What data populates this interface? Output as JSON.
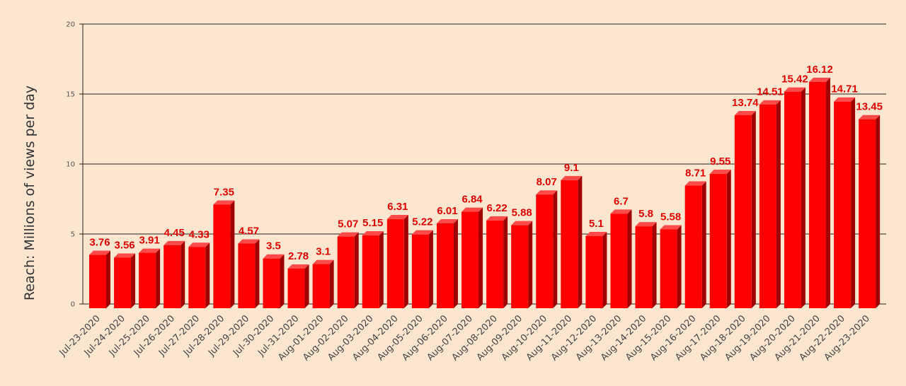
{
  "chart_data": {
    "type": "bar",
    "title": "",
    "xlabel": "",
    "ylabel": "Reach: Millions of views per day",
    "ylim": [
      0,
      20
    ],
    "yticks": [
      0,
      5,
      10,
      15,
      20
    ],
    "grid": true,
    "legend": "none",
    "colors": {
      "bar": "#ff0000",
      "bar_side": "#a00000",
      "bar_top": "#ff4a4a",
      "label": "#e00000",
      "background": "#fde6d0"
    },
    "categories": [
      "Jul-23-2020",
      "Jul-24-2020",
      "Jul-25-2020",
      "Jul-26-2020",
      "Jul-27-2020",
      "Jul-28-2020",
      "Jul-29-2020",
      "Jul-30-2020",
      "Jul-31-2020",
      "Aug-01-2020",
      "Aug-02-2020",
      "Aug-03-2020",
      "Aug-04-2020",
      "Aug-05-2020",
      "Aug-06-2020",
      "Aug-07-2020",
      "Aug-08-2020",
      "Aug-09-2020",
      "Aug-10-2020",
      "Aug-11-2020",
      "Aug-12-2020",
      "Aug-13-2020",
      "Aug-14-2020",
      "Aug-15-2020",
      "Aug-16-2020",
      "Aug-17-2020",
      "Aug-18-2020",
      "Aug-19-2020",
      "Aug-20-2020",
      "Aug-21-2020",
      "Aug-22-2020",
      "Aug-23-2020"
    ],
    "values": [
      3.76,
      3.56,
      3.91,
      4.45,
      4.33,
      7.35,
      4.57,
      3.5,
      2.78,
      3.1,
      5.07,
      5.15,
      6.31,
      5.22,
      6.01,
      6.84,
      6.22,
      5.88,
      8.07,
      9.1,
      5.1,
      6.7,
      5.8,
      5.58,
      8.71,
      9.55,
      13.74,
      14.51,
      15.42,
      16.12,
      14.71,
      13.45
    ]
  }
}
